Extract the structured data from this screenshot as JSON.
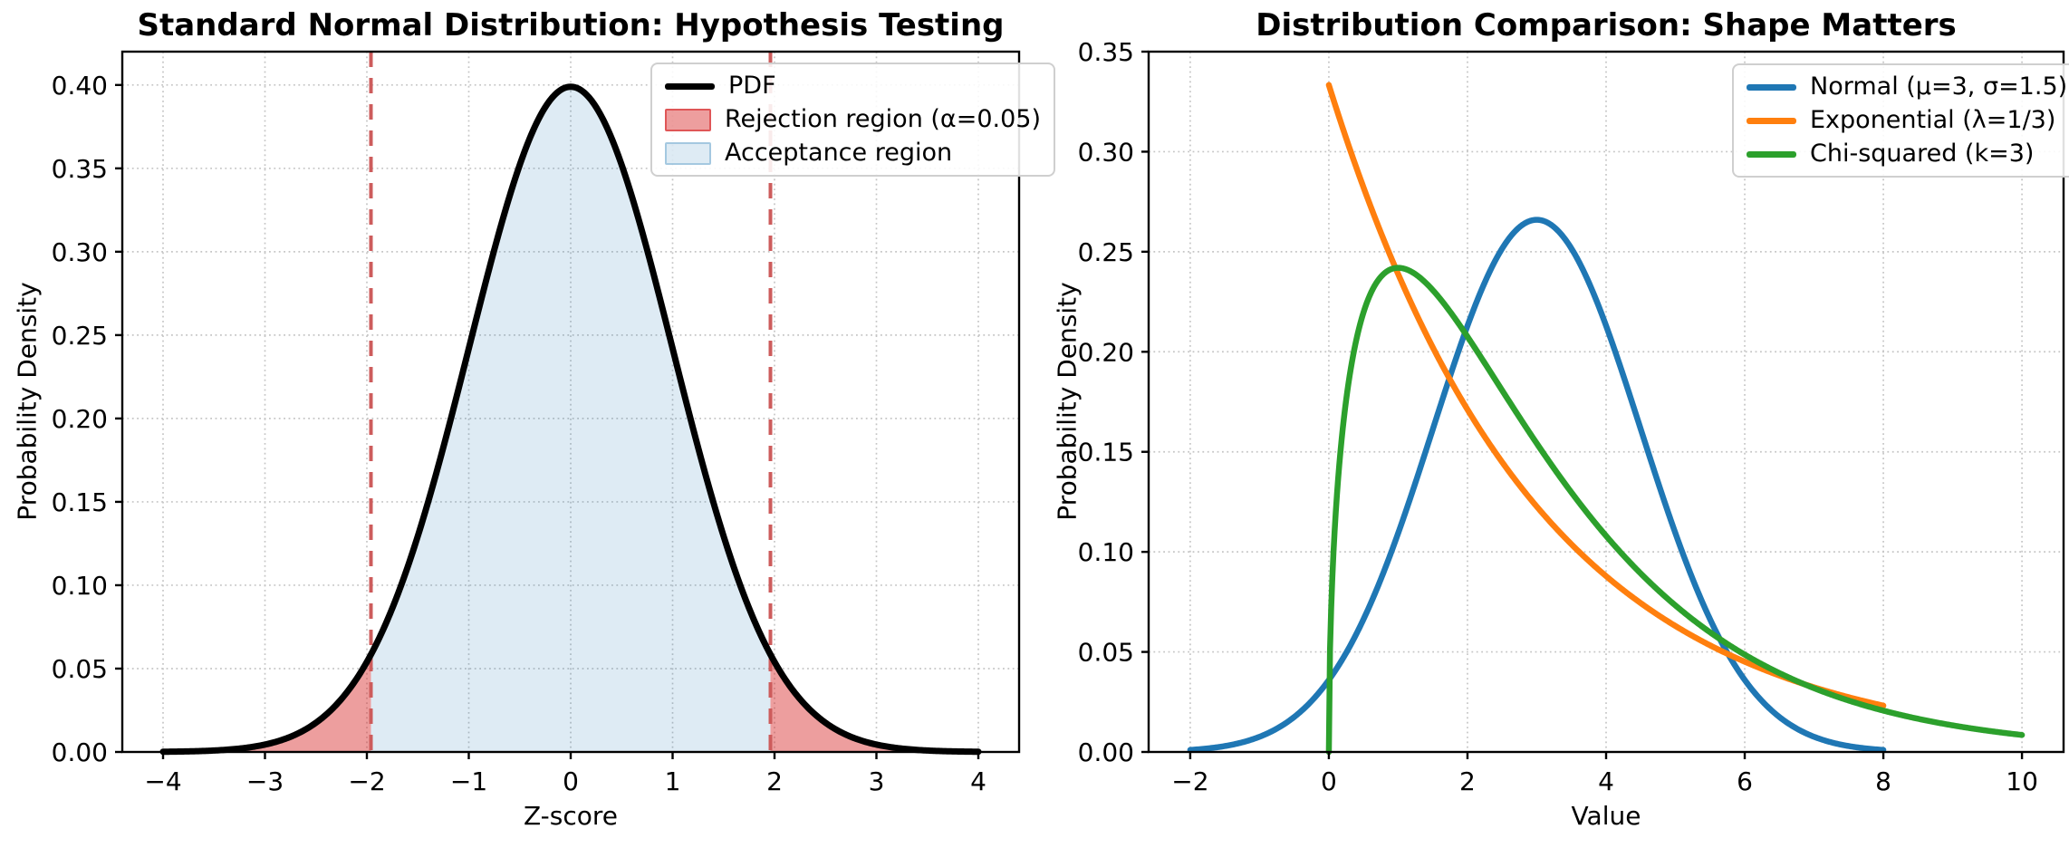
{
  "chart_data": [
    {
      "type": "line",
      "title": "Standard Normal Distribution: Hypothesis Testing",
      "xlabel": "Z-score",
      "ylabel": "Probability Density",
      "xlim": [
        -4.4,
        4.4
      ],
      "ylim": [
        0,
        0.42
      ],
      "xticks": [
        -4,
        -3,
        -2,
        -1,
        0,
        1,
        2,
        3,
        4
      ],
      "yticks": [
        0.0,
        0.05,
        0.1,
        0.15,
        0.2,
        0.25,
        0.3,
        0.35,
        0.4
      ],
      "grid": true,
      "series": [
        {
          "label": "PDF",
          "distribution": "normal",
          "mu": 0,
          "sigma": 1,
          "x_range": [
            -4,
            4
          ],
          "color": "#000000",
          "linewidth": 7,
          "key_points": [
            [
              -4,
              0.0001
            ],
            [
              -3,
              0.0044
            ],
            [
              -2,
              0.054
            ],
            [
              -1,
              0.242
            ],
            [
              0,
              0.3989
            ],
            [
              1,
              0.242
            ],
            [
              2,
              0.054
            ],
            [
              3,
              0.0044
            ],
            [
              4,
              0.0001
            ]
          ]
        }
      ],
      "regions": [
        {
          "label": "Rejection region (α=0.05)",
          "alpha_level": 0.05,
          "x_ranges": [
            [
              -4,
              -1.96
            ],
            [
              1.96,
              4
            ]
          ],
          "fill_color": "rgba(214,39,40,0.45)",
          "edge_color": "rgba(214,39,40,0.6)"
        },
        {
          "label": "Acceptance region",
          "x_ranges": [
            [
              -1.96,
              1.96
            ]
          ],
          "fill_color": "rgba(31,119,180,0.15)",
          "edge_color": "rgba(31,119,180,0.3)"
        }
      ],
      "critical_lines": {
        "x_values": [
          -1.96,
          1.96
        ],
        "color": "#cd5c5c",
        "style": "dashed"
      },
      "legend": {
        "position": "upper-right",
        "items": [
          {
            "label": "PDF",
            "swatch": "line",
            "color": "#000000"
          },
          {
            "label": "Rejection region (α=0.05)",
            "swatch": "patch",
            "color": "rgba(214,39,40,0.45)",
            "border": "rgba(214,39,40,0.6)"
          },
          {
            "label": "Acceptance region",
            "swatch": "patch",
            "color": "rgba(31,119,180,0.15)",
            "border": "rgba(31,119,180,0.3)"
          }
        ]
      }
    },
    {
      "type": "line",
      "title": "Distribution Comparison: Shape Matters",
      "xlabel": "Value",
      "ylabel": "Probability Density",
      "xlim": [
        -2.6,
        10.6
      ],
      "ylim": [
        0,
        0.35
      ],
      "xticks": [
        -2,
        0,
        2,
        4,
        6,
        8,
        10
      ],
      "yticks": [
        0.0,
        0.05,
        0.1,
        0.15,
        0.2,
        0.25,
        0.3,
        0.35
      ],
      "grid": true,
      "series": [
        {
          "label": "Normal (μ=3, σ=1.5)",
          "distribution": "normal",
          "mu": 3,
          "sigma": 1.5,
          "x_range": [
            -2,
            8
          ],
          "color": "#1f77b4",
          "linewidth": 6.5,
          "key_points": [
            [
              -2,
              0.001
            ],
            [
              -1,
              0.0076
            ],
            [
              0,
              0.036
            ],
            [
              1,
              0.1093
            ],
            [
              2,
              0.213
            ],
            [
              3,
              0.266
            ],
            [
              4,
              0.213
            ],
            [
              5,
              0.1093
            ],
            [
              6,
              0.036
            ],
            [
              7,
              0.0076
            ],
            [
              8,
              0.001
            ]
          ]
        },
        {
          "label": "Exponential (λ=1/3)",
          "distribution": "exponential",
          "lambda": 0.3333333,
          "x_range": [
            0,
            8
          ],
          "color": "#ff7f0e",
          "linewidth": 6.5,
          "key_points": [
            [
              0,
              0.3333
            ],
            [
              1,
              0.2388
            ],
            [
              2,
              0.1711
            ],
            [
              3,
              0.1226
            ],
            [
              4,
              0.0879
            ],
            [
              5,
              0.063
            ],
            [
              6,
              0.0451
            ],
            [
              7,
              0.0323
            ],
            [
              8,
              0.0231
            ]
          ]
        },
        {
          "label": "Chi-squared (k=3)",
          "distribution": "chi-squared",
          "k": 3,
          "x_range": [
            0,
            10
          ],
          "color": "#2ca02c",
          "linewidth": 6.5,
          "key_points": [
            [
              0,
              0
            ],
            [
              1,
              0.242
            ],
            [
              2,
              0.2076
            ],
            [
              3,
              0.1541
            ],
            [
              4,
              0.108
            ],
            [
              5,
              0.0732
            ],
            [
              6,
              0.0487
            ],
            [
              7,
              0.0319
            ],
            [
              8,
              0.0207
            ],
            [
              9,
              0.0133
            ],
            [
              10,
              0.0085
            ]
          ]
        }
      ],
      "legend": {
        "position": "upper-right",
        "items": [
          {
            "label": "Normal (μ=3, σ=1.5)",
            "swatch": "line",
            "color": "#1f77b4"
          },
          {
            "label": "Exponential (λ=1/3)",
            "swatch": "line",
            "color": "#ff7f0e"
          },
          {
            "label": "Chi-squared (k=3)",
            "swatch": "line",
            "color": "#2ca02c"
          }
        ]
      }
    }
  ],
  "style": {
    "grid_color": "#bcbcbc",
    "spine_color": "#000000",
    "tick_color": "#000000",
    "legend_border_color": "#cfcfcf"
  }
}
